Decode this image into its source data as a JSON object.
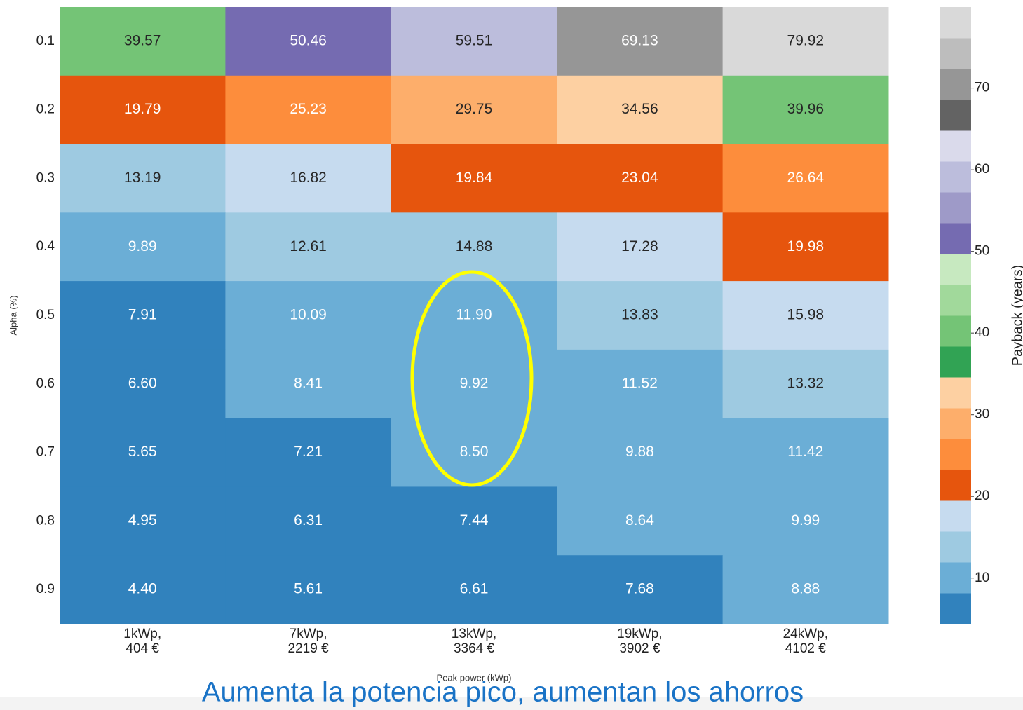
{
  "chart_data": {
    "type": "heatmap",
    "title": "Aumenta la potencia pico, aumentan los ahorros",
    "x_label": "Peak power (kWp)",
    "y_label": "Alpha (%)",
    "colorbar_label": "Payback (years)",
    "x_categories": [
      "1kWp,\n404 €",
      "7kWp,\n2219 €",
      "13kWp,\n3364 €",
      "19kWp,\n3902 €",
      "24kWp,\n4102 €"
    ],
    "y_categories": [
      "0.1",
      "0.2",
      "0.3",
      "0.4",
      "0.5",
      "0.6",
      "0.7",
      "0.8",
      "0.9"
    ],
    "values": [
      [
        39.57,
        50.46,
        59.51,
        69.13,
        79.92
      ],
      [
        19.79,
        25.23,
        29.75,
        34.56,
        39.96
      ],
      [
        13.19,
        16.82,
        19.84,
        23.04,
        26.64
      ],
      [
        9.89,
        12.61,
        14.88,
        17.28,
        19.98
      ],
      [
        7.91,
        10.09,
        11.9,
        13.83,
        15.98
      ],
      [
        6.6,
        8.41,
        9.92,
        11.52,
        13.32
      ],
      [
        5.65,
        7.21,
        8.5,
        9.88,
        11.42
      ],
      [
        4.95,
        6.31,
        7.44,
        8.64,
        9.99
      ],
      [
        4.4,
        5.61,
        6.61,
        7.68,
        8.88
      ]
    ],
    "value_labels": [
      [
        "39.57",
        "50.46",
        "59.51",
        "69.13",
        "79.92"
      ],
      [
        "19.79",
        "25.23",
        "29.75",
        "34.56",
        "39.96"
      ],
      [
        "13.19",
        "16.82",
        "19.84",
        "23.04",
        "26.64"
      ],
      [
        "9.89",
        "12.61",
        "14.88",
        "17.28",
        "19.98"
      ],
      [
        "7.91",
        "10.09",
        "11.90",
        "13.83",
        "15.98"
      ],
      [
        "6.60",
        "8.41",
        "9.92",
        "11.52",
        "13.32"
      ],
      [
        "5.65",
        "7.21",
        "8.50",
        "9.88",
        "11.42"
      ],
      [
        "4.95",
        "6.31",
        "7.44",
        "8.64",
        "9.99"
      ],
      [
        "4.40",
        "5.61",
        "6.61",
        "7.68",
        "8.88"
      ]
    ],
    "clim": [
      4.4,
      79.92
    ],
    "colorbar_ticks": [
      10,
      20,
      30,
      40,
      50,
      60,
      70
    ],
    "colormap": [
      "#3182bd",
      "#6baed6",
      "#9ecae1",
      "#c6dbef",
      "#e6550d",
      "#fd8d3c",
      "#fdae6b",
      "#fdd0a2",
      "#31a354",
      "#74c476",
      "#a1d99b",
      "#c7e9c0",
      "#756bb1",
      "#9e9ac8",
      "#bcbddc",
      "#dadaeb",
      "#636363",
      "#969696",
      "#bdbdbd",
      "#d9d9d9"
    ]
  }
}
